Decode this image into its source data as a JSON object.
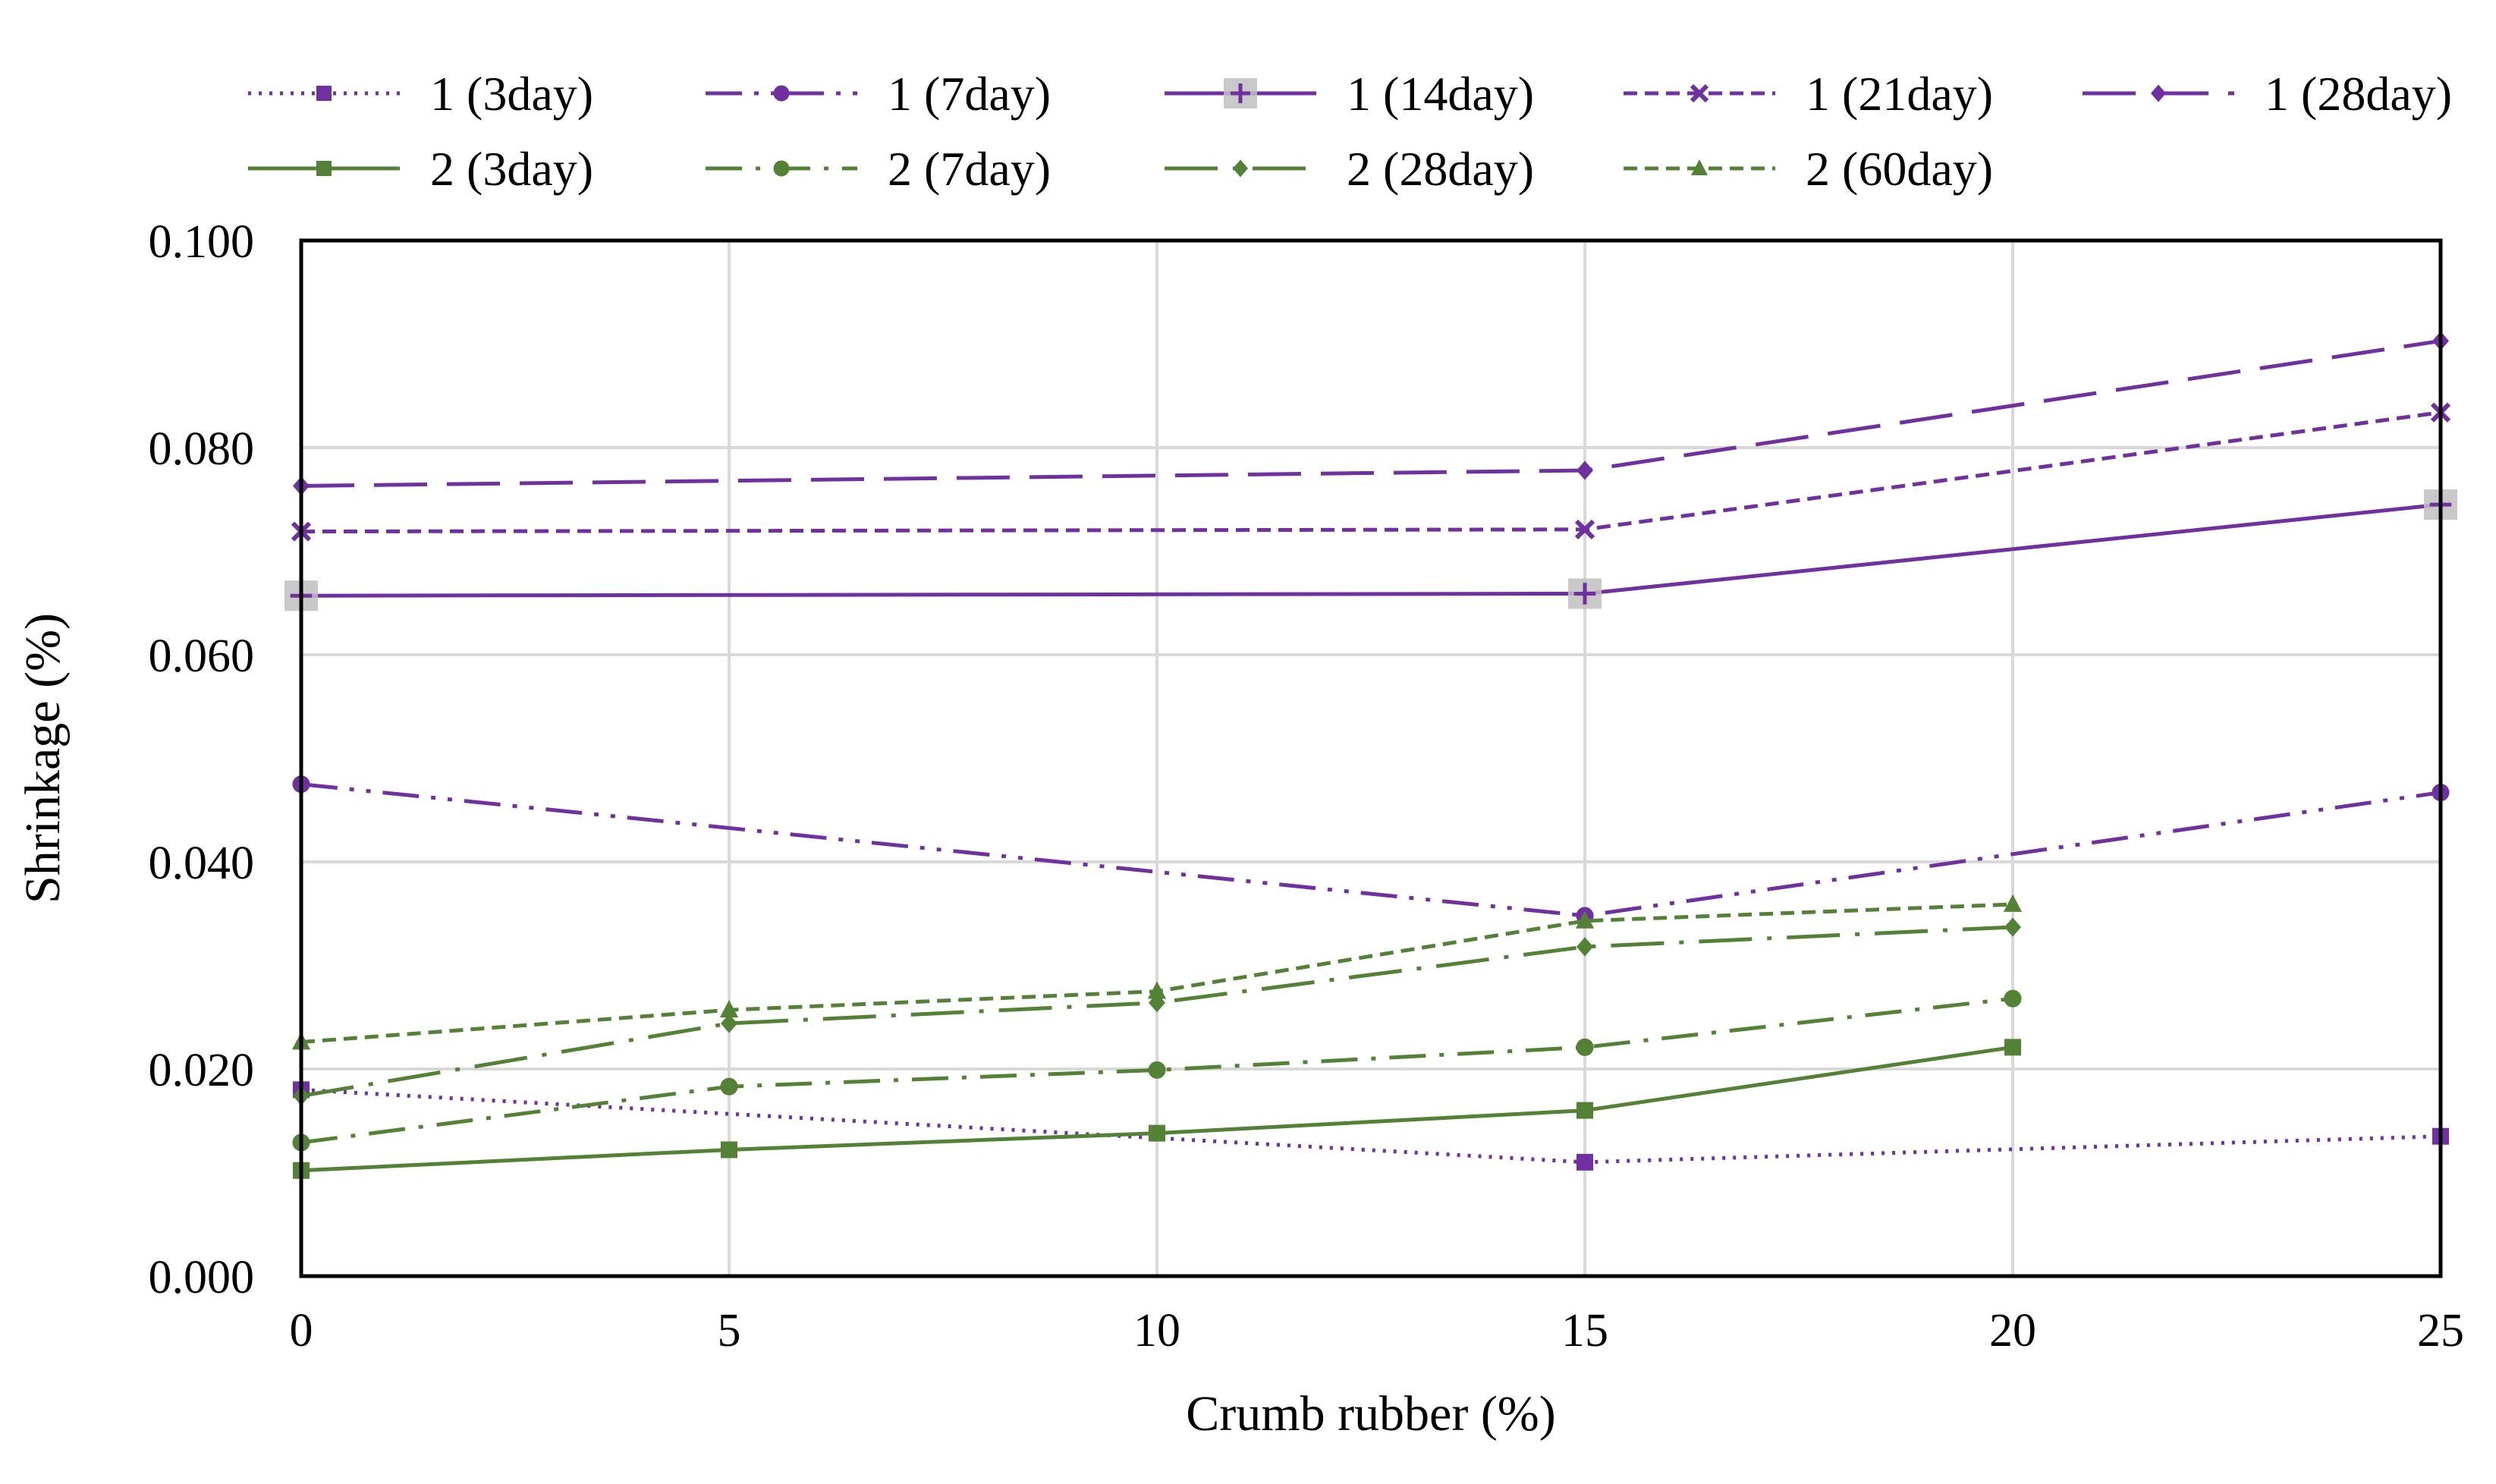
{
  "chart_data": {
    "type": "line",
    "title": "",
    "xlabel": "Crumb rubber (%)",
    "ylabel": "Shrinkage (%)",
    "xlim": [
      0,
      25
    ],
    "ylim": [
      0,
      0.1
    ],
    "xticks": [
      0,
      5,
      10,
      15,
      20,
      25
    ],
    "xtick_labels": [
      "0",
      "5",
      "10",
      "15",
      "20",
      "25"
    ],
    "yticks": [
      0,
      0.02,
      0.04,
      0.06,
      0.08,
      0.1
    ],
    "ytick_labels": [
      "0.000",
      "0.020",
      "0.040",
      "0.060",
      "0.080",
      "0.100"
    ],
    "grid": true,
    "legend_position": "top",
    "series": [
      {
        "name": "1 (3day)",
        "color": "#7030a0",
        "dash": "dot",
        "marker": "square",
        "x": [
          0,
          15,
          25
        ],
        "values": [
          0.018,
          0.011,
          0.0135
        ]
      },
      {
        "name": "1 (7day)",
        "color": "#7030a0",
        "dash": "dashdotdot",
        "marker": "circle",
        "x": [
          0,
          15,
          25
        ],
        "values": [
          0.0475,
          0.0348,
          0.0467
        ]
      },
      {
        "name": "1 (14day)",
        "color": "#7030a0",
        "dash": "solid",
        "marker": "plus",
        "x": [
          0,
          15,
          25
        ],
        "values": [
          0.0657,
          0.0659,
          0.0745
        ]
      },
      {
        "name": "1 (21day)",
        "color": "#7030a0",
        "dash": "shortdash",
        "marker": "x",
        "x": [
          0,
          15,
          25
        ],
        "values": [
          0.0719,
          0.0721,
          0.0834
        ]
      },
      {
        "name": "1 (28day)",
        "color": "#7030a0",
        "dash": "longdash",
        "marker": "diamond",
        "x": [
          0,
          15,
          25
        ],
        "values": [
          0.0763,
          0.0778,
          0.0903
        ]
      },
      {
        "name": "2 (3day)",
        "color": "#538135",
        "dash": "solid",
        "marker": "square",
        "x": [
          0,
          5,
          10,
          15,
          20
        ],
        "values": [
          0.0102,
          0.0122,
          0.0138,
          0.016,
          0.0221
        ]
      },
      {
        "name": "2 (7day)",
        "color": "#538135",
        "dash": "dashdot",
        "marker": "circle",
        "x": [
          0,
          5,
          10,
          15,
          20
        ],
        "values": [
          0.0129,
          0.0183,
          0.0199,
          0.0221,
          0.0268
        ]
      },
      {
        "name": "2 (28day)",
        "color": "#538135",
        "dash": "longdashdot",
        "marker": "diamond",
        "x": [
          0,
          5,
          10,
          15,
          20
        ],
        "values": [
          0.0174,
          0.0244,
          0.0264,
          0.0318,
          0.0337
        ]
      },
      {
        "name": "2 (60day)",
        "color": "#538135",
        "dash": "shortdash",
        "marker": "triangle",
        "x": [
          0,
          5,
          10,
          15,
          20
        ],
        "values": [
          0.0226,
          0.0257,
          0.0275,
          0.0343,
          0.0359
        ]
      }
    ]
  }
}
